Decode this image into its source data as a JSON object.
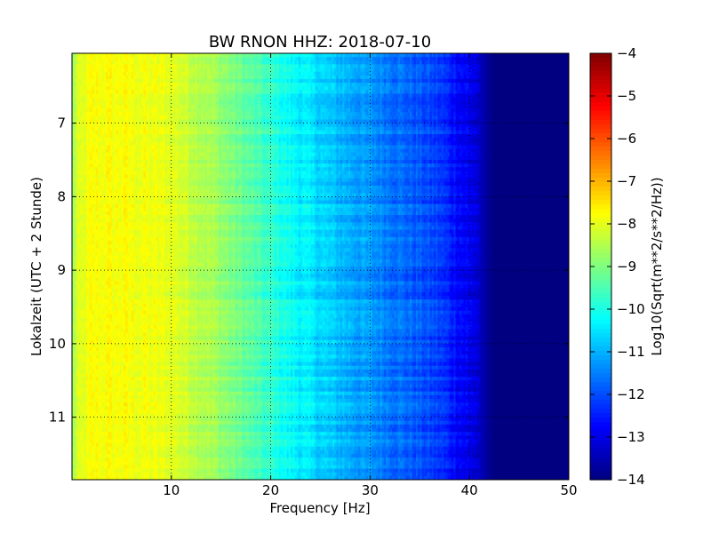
{
  "chart_data": {
    "type": "heatmap",
    "title": "BW RNON HHZ: 2018-07-10",
    "xlabel": "Frequency [Hz]",
    "ylabel": "Lokalzeit (UTC + 2 Stunde)",
    "colorbar_label": "Log10(Sqrt(m**2/s**2/Hz))",
    "colormap": "jet",
    "xlim": [
      0,
      50
    ],
    "ylim_top_to_bottom": [
      6.05,
      11.85
    ],
    "x_ticks": [
      10,
      20,
      30,
      40,
      50
    ],
    "x_tick_labels": [
      "10",
      "20",
      "30",
      "40",
      "50"
    ],
    "y_ticks": [
      7,
      8,
      9,
      10,
      11
    ],
    "y_tick_labels": [
      "7",
      "8",
      "9",
      "10",
      "11"
    ],
    "y_axis_inverted": true,
    "grid": true,
    "colorbar_range": [
      -14,
      -4
    ],
    "colorbar_ticks": [
      -4,
      -5,
      -6,
      -7,
      -8,
      -9,
      -10,
      -11,
      -12,
      -13,
      -14
    ],
    "colorbar_tick_labels": [
      "−4",
      "−5",
      "−6",
      "−7",
      "−8",
      "−9",
      "−10",
      "−11",
      "−12",
      "−13",
      "−14"
    ],
    "spectrum_profile": {
      "frequency_hz": [
        0,
        0.5,
        2,
        5,
        10,
        14,
        18,
        22,
        26,
        30,
        34,
        37,
        39,
        40.5,
        41.5,
        42.5,
        50
      ],
      "log10_amplitude": [
        -8.8,
        -8.2,
        -7.8,
        -7.8,
        -8.0,
        -8.6,
        -9.4,
        -10.2,
        -10.8,
        -11.3,
        -11.8,
        -12.2,
        -12.7,
        -13.0,
        -13.6,
        -14.0,
        -14.0
      ]
    }
  }
}
